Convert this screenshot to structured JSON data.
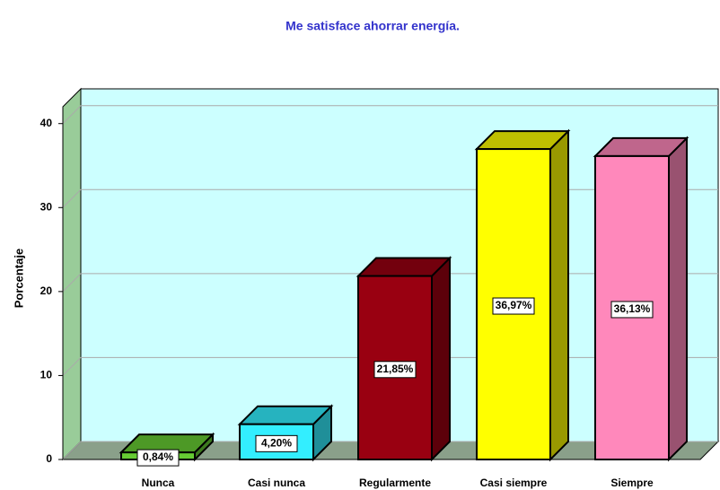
{
  "chart_data": {
    "type": "bar3d",
    "title": "Me satisface ahorrar energía.",
    "ylabel": "Porcentaje",
    "categories": [
      "Nunca",
      "Casi nunca",
      "Regularmente",
      "Casi siempre",
      "Siempre"
    ],
    "values": [
      0.84,
      4.2,
      21.85,
      36.97,
      36.13
    ],
    "value_labels": [
      "0,84%",
      "4,20%",
      "21,85%",
      "36,97%",
      "36,13%"
    ],
    "colors": [
      "#66cc33",
      "#33eeff",
      "#990011",
      "#ffff00",
      "#ff88bb"
    ],
    "ylim": [
      0,
      42
    ],
    "yticks": [
      0,
      10,
      20,
      30,
      40
    ],
    "grid": true
  }
}
